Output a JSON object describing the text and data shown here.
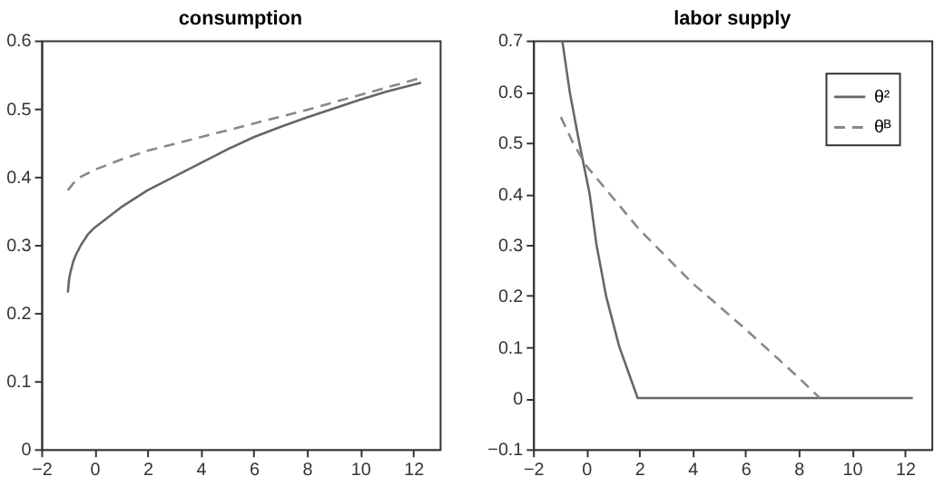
{
  "chart_data": [
    {
      "type": "line",
      "title": "consumption",
      "xlim": [
        -2,
        13
      ],
      "xticks": [
        -2,
        0,
        2,
        4,
        6,
        8,
        10,
        12
      ],
      "ylim": [
        0,
        0.6
      ],
      "yticks": [
        0,
        0.1,
        0.2,
        0.3,
        0.4,
        0.5,
        0.6
      ],
      "grid": false,
      "legend": false,
      "series": [
        {
          "color": "#666666",
          "line_style": "solid",
          "x": [
            -1,
            -0.95,
            -0.9,
            -0.8,
            -0.7,
            -0.5,
            -0.25,
            0,
            0.5,
            1,
            2,
            3,
            4,
            5,
            6,
            7,
            8,
            9,
            10,
            11,
            12.3
          ],
          "values": [
            0.23,
            0.25,
            0.26,
            0.275,
            0.285,
            0.3,
            0.315,
            0.325,
            0.34,
            0.355,
            0.38,
            0.4,
            0.42,
            0.44,
            0.458,
            0.473,
            0.487,
            0.5,
            0.513,
            0.525,
            0.538
          ]
        },
        {
          "color": "#888888",
          "line_style": "dashed",
          "x": [
            -1,
            -0.8,
            -0.5,
            0,
            1,
            2,
            4,
            6,
            8,
            10,
            12.3
          ],
          "values": [
            0.38,
            0.39,
            0.4,
            0.41,
            0.425,
            0.438,
            0.458,
            0.478,
            0.498,
            0.52,
            0.545
          ]
        }
      ]
    },
    {
      "type": "line",
      "title": "labor supply",
      "xlim": [
        -2,
        13
      ],
      "xticks": [
        -2,
        0,
        2,
        4,
        6,
        8,
        10,
        12
      ],
      "ylim": [
        -0.1,
        0.7
      ],
      "yticks": [
        -0.1,
        0,
        0.1,
        0.2,
        0.3,
        0.4,
        0.5,
        0.6,
        0.7
      ],
      "grid": false,
      "legend": "top right",
      "series": [
        {
          "name": "θ²",
          "color": "#666666",
          "line_style": "solid",
          "x": [
            -0.9,
            -0.62,
            -0.26,
            0.13,
            0.39,
            0.75,
            1.25,
            1.94,
            12.3
          ],
          "values": [
            0.7,
            0.6,
            0.5,
            0.4,
            0.3,
            0.2,
            0.1,
            0,
            0
          ]
        },
        {
          "name": "θᴮ",
          "color": "#888888",
          "line_style": "dashed",
          "x": [
            -0.95,
            -0.5,
            0,
            2,
            4,
            6,
            8,
            8.8
          ],
          "values": [
            0.55,
            0.5,
            0.455,
            0.33,
            0.225,
            0.135,
            0.04,
            0
          ]
        }
      ]
    }
  ]
}
